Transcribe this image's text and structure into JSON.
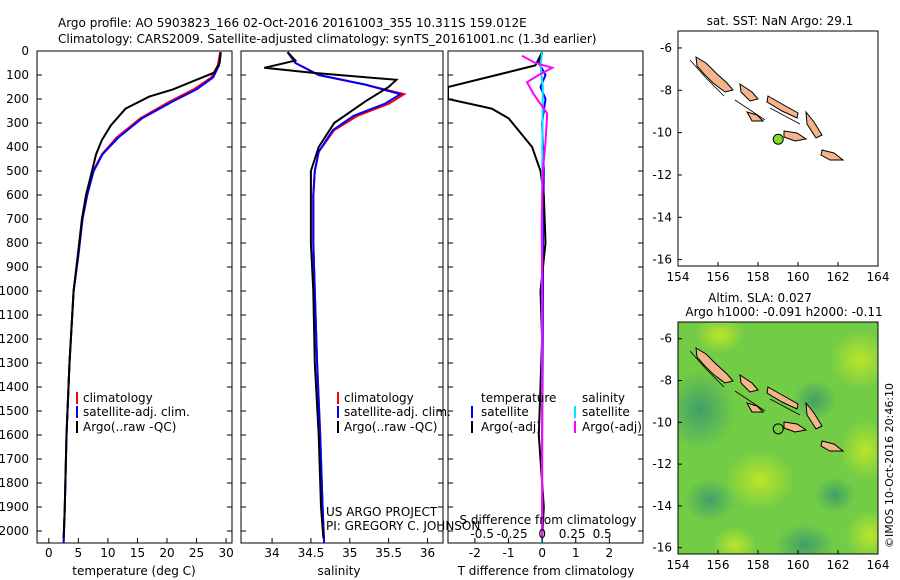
{
  "header": {
    "line1": "Argo profile: AO 5903823_166 02-Oct-2016 20161003_355 10.311S 159.012E",
    "line2": "Climatology: CARS2009. Satellite-adjusted climatology: synTS_20161001.nc (1.3d earlier)"
  },
  "credit": {
    "project": "US ARGO PROJECT",
    "pi": "PI: GREGORY C. JOHNSON",
    "imos": "©IMOS 10-Oct-2016 20:46:10"
  },
  "colors": {
    "climatology": "#ff0000",
    "satellite": "#0000ff",
    "argo": "#000000",
    "salinity_satellite": "#00e5ff",
    "salinity_argo": "#ff00ff",
    "land": "#f4b48c",
    "argo_marker_sst": "#7fdc2a"
  },
  "chart_data": [
    {
      "type": "line",
      "id": "temperature",
      "xlabel": "temperature (deg C)",
      "xlim": [
        -2,
        31
      ],
      "xticks": [
        0,
        5,
        10,
        15,
        20,
        25,
        30
      ],
      "ylim": [
        0,
        2050
      ],
      "yticks": [
        0,
        100,
        200,
        300,
        400,
        500,
        600,
        700,
        800,
        900,
        1000,
        1100,
        1200,
        1300,
        1400,
        1500,
        1600,
        1700,
        1800,
        1900,
        2000
      ],
      "legend": [
        "climatology",
        "satellite-adj. clim.",
        "Argo(..raw -QC)"
      ],
      "series": [
        {
          "name": "climatology",
          "color": "#ff0000",
          "x": [
            29.0,
            28.6,
            27.5,
            24.5,
            20.5,
            15.5,
            11.5,
            9.0,
            7.5,
            6.5,
            5.7,
            5.0,
            4.2,
            3.5,
            3.0,
            2.7,
            2.5
          ],
          "y": [
            5,
            60,
            110,
            160,
            210,
            280,
            360,
            430,
            500,
            600,
            700,
            850,
            1000,
            1300,
            1600,
            1900,
            2050
          ]
        },
        {
          "name": "satellite-adj. clim.",
          "color": "#0000ff",
          "x": [
            29.1,
            28.8,
            27.8,
            25.0,
            21.0,
            15.8,
            11.8,
            9.1,
            7.6,
            6.5,
            5.7,
            5.0,
            4.2,
            3.5,
            3.0,
            2.7,
            2.5
          ],
          "y": [
            5,
            60,
            110,
            160,
            210,
            280,
            360,
            430,
            500,
            600,
            700,
            850,
            1000,
            1300,
            1600,
            1900,
            2050
          ]
        },
        {
          "name": "Argo(..raw -QC)",
          "color": "#000000",
          "x": [
            29.1,
            28.9,
            28.0,
            24.0,
            21.0,
            17.0,
            13.0,
            10.5,
            9.0,
            8.0,
            7.3,
            6.3,
            5.6,
            4.9,
            4.2,
            3.5,
            3.0,
            2.7,
            2.5
          ],
          "y": [
            5,
            50,
            90,
            130,
            160,
            190,
            240,
            310,
            370,
            430,
            500,
            600,
            700,
            850,
            1000,
            1300,
            1600,
            1900,
            2030
          ]
        }
      ]
    },
    {
      "type": "line",
      "id": "salinity",
      "xlabel": "salinity",
      "xlim": [
        33.6,
        36.2
      ],
      "xticks": [
        34,
        34.5,
        35,
        35.5,
        36
      ],
      "ylim": [
        0,
        2050
      ],
      "legend": [
        "climatology",
        "satellite-adj. clim.",
        "Argo(..raw -QC)"
      ],
      "series": [
        {
          "name": "climatology",
          "color": "#ff0000",
          "x": [
            34.2,
            34.3,
            34.6,
            35.2,
            35.7,
            35.5,
            35.1,
            34.8,
            34.6,
            34.55,
            34.53,
            34.53,
            34.55,
            34.58,
            34.62,
            34.65,
            34.67
          ],
          "y": [
            5,
            50,
            100,
            140,
            180,
            220,
            270,
            330,
            420,
            500,
            600,
            800,
            1000,
            1300,
            1600,
            1900,
            2050
          ]
        },
        {
          "name": "satellite-adj. clim.",
          "color": "#0000ff",
          "x": [
            34.2,
            34.3,
            34.6,
            35.2,
            35.65,
            35.45,
            35.05,
            34.78,
            34.6,
            34.55,
            34.53,
            34.53,
            34.55,
            34.58,
            34.62,
            34.65,
            34.67
          ],
          "y": [
            5,
            50,
            100,
            140,
            180,
            220,
            270,
            330,
            420,
            500,
            600,
            800,
            1000,
            1300,
            1600,
            1900,
            2050
          ]
        },
        {
          "name": "Argo(..raw -QC)",
          "color": "#000000",
          "x": [
            34.2,
            34.3,
            33.9,
            34.5,
            35.6,
            35.5,
            35.2,
            34.8,
            34.6,
            34.5,
            34.5,
            34.5,
            34.53,
            34.55,
            34.6,
            34.63,
            34.66
          ],
          "y": [
            5,
            40,
            70,
            90,
            120,
            150,
            210,
            300,
            400,
            500,
            600,
            800,
            1000,
            1300,
            1600,
            1900,
            2030
          ]
        }
      ]
    },
    {
      "type": "line",
      "id": "difference",
      "xlabel": "T difference from climatology",
      "xlabel2": "S difference from climatology",
      "xlim_T": [
        -2.8,
        3
      ],
      "xticks_T": [
        -2,
        -1,
        0,
        1,
        2
      ],
      "xticks_S": [
        -0.5,
        -0.25,
        0,
        0.25,
        0.5
      ],
      "xtick_labels_S": [
        "-0.5",
        "-0.25",
        "0",
        "0.25",
        "0.5"
      ],
      "ylim": [
        0,
        2050
      ],
      "legend": {
        "temperature": "temperature",
        "salinity": "salinity",
        "t_satellite": "satellite",
        "t_argo": "Argo(-adj)",
        "s_satellite": "satellite",
        "s_argo": "Argo(-adj)"
      },
      "series": [
        {
          "name": "satellite",
          "color": "#0000ff",
          "x": [
            0,
            -0.1,
            0.1,
            -0.05,
            0.1,
            0,
            0.05,
            0.03,
            0.02,
            0,
            0
          ],
          "y": [
            5,
            50,
            100,
            150,
            200,
            300,
            500,
            800,
            1200,
            1600,
            2000
          ]
        },
        {
          "name": "Argo(-adj)",
          "color": "#000000",
          "x": [
            0,
            -0.2,
            -2.8,
            -2.8,
            -1.5,
            -1.0,
            -0.3,
            -0.05,
            0.05,
            0.1,
            -0.05,
            0.0,
            -0.1,
            0.05,
            0
          ],
          "y": [
            5,
            60,
            150,
            200,
            240,
            280,
            400,
            500,
            600,
            800,
            1000,
            1200,
            1600,
            1900,
            2030
          ]
        },
        {
          "name": "satellite",
          "color": "#00e5ff",
          "x": [
            0,
            -0.05,
            0.02,
            0.01,
            0,
            0,
            0,
            0
          ],
          "y": [
            5,
            60,
            150,
            300,
            600,
            1000,
            1500,
            2050
          ]
        },
        {
          "name": "Argo(-adj)",
          "color": "#ff00ff",
          "x": [
            -0.6,
            -0.2,
            0.3,
            -0.1,
            -0.45,
            -0.25,
            0.15,
            0.1,
            0.02,
            -0.01,
            0,
            0
          ],
          "y": [
            20,
            50,
            70,
            100,
            130,
            180,
            260,
            380,
            500,
            700,
            1000,
            2030
          ]
        }
      ]
    },
    {
      "type": "map",
      "id": "sst_map",
      "title": "sat. SST: NaN Argo: 29.1",
      "xticks": [
        154,
        156,
        158,
        160,
        162,
        164
      ],
      "yticks": [
        -6,
        -8,
        -10,
        -12,
        -14,
        -16
      ],
      "xlim": [
        154,
        164
      ],
      "ylim": [
        -16.3,
        -5.2
      ],
      "argo_position": [
        159.012,
        -10.311
      ]
    },
    {
      "type": "heatmap",
      "id": "sla_map",
      "title1": "Altim. SLA: 0.027",
      "title2": "Argo h1000: -0.091 h2000: -0.11",
      "xticks": [
        154,
        156,
        158,
        160,
        162,
        164
      ],
      "yticks": [
        -6,
        -8,
        -10,
        -12,
        -14,
        -16
      ],
      "xlim": [
        154,
        164
      ],
      "ylim": [
        -16.3,
        -5.2
      ],
      "argo_position": [
        159.012,
        -10.311
      ]
    }
  ]
}
